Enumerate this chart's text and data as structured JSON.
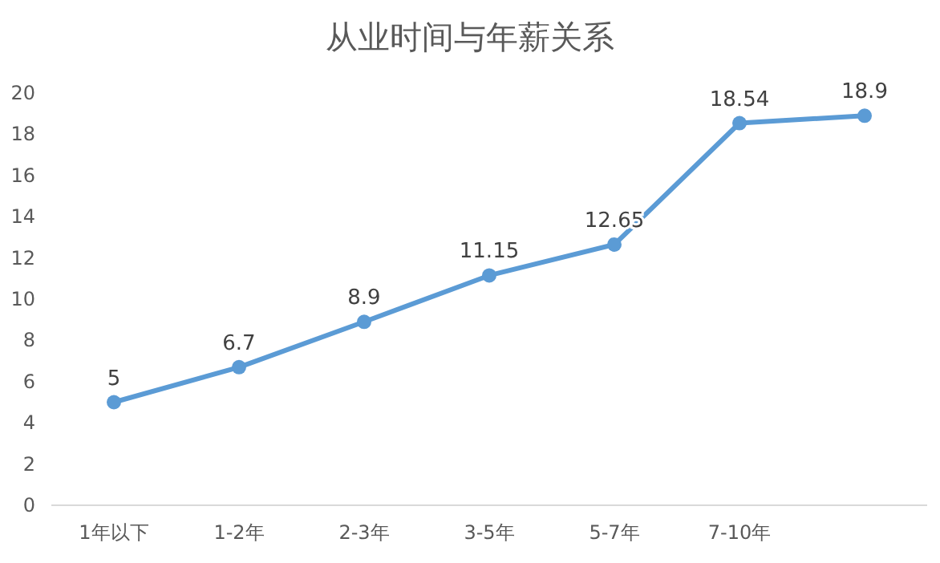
{
  "chart_data": {
    "type": "line",
    "title": "从业时间与年薪关系",
    "categories": [
      "1年以下",
      "1-2年",
      "2-3年",
      "3-5年",
      "5-7年",
      "7-10年",
      null
    ],
    "series": [
      {
        "color": "#5b9bd5",
        "values": [
          5,
          6.7,
          8.9,
          11.15,
          12.65,
          18.54,
          18.9
        ]
      }
    ],
    "ylim": [
      0,
      20
    ],
    "yticks": [
      0,
      2,
      4,
      6,
      8,
      10,
      12,
      14,
      16,
      18,
      20
    ],
    "grid": false,
    "marker": "circle",
    "line_style": "solid",
    "data_labels": true
  }
}
